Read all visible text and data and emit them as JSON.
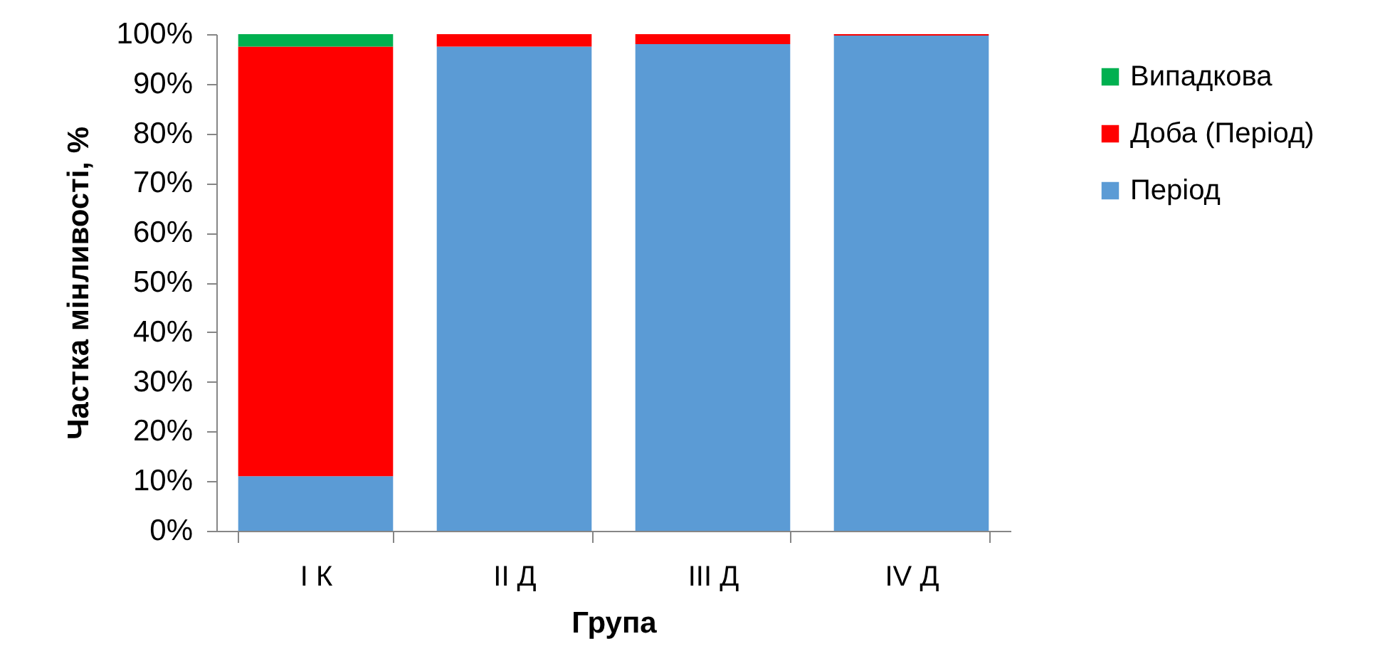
{
  "chart_data": {
    "type": "bar",
    "stacked": true,
    "xlabel": "Група",
    "ylabel": "Частка мінливості, %",
    "categories": [
      "I К",
      "II Д",
      "III Д",
      "IV Д"
    ],
    "series": [
      {
        "name": "Період",
        "color": "#5b9bd5",
        "values": [
          11,
          97.5,
          98,
          99.7
        ]
      },
      {
        "name": "Доба (Період)",
        "color": "#ff0000",
        "values": [
          86.5,
          2.5,
          2,
          0.3
        ]
      },
      {
        "name": "Випадкова",
        "color": "#00b050",
        "values": [
          2.5,
          null,
          null,
          null
        ]
      }
    ],
    "ylim": [
      0,
      100
    ],
    "yticks": [
      {
        "value": 0,
        "label": "0%"
      },
      {
        "value": 10,
        "label": "10%"
      },
      {
        "value": 20,
        "label": "20%"
      },
      {
        "value": 30,
        "label": "30%"
      },
      {
        "value": 40,
        "label": "40%"
      },
      {
        "value": 50,
        "label": "50%"
      },
      {
        "value": 60,
        "label": "60%"
      },
      {
        "value": 70,
        "label": "70%"
      },
      {
        "value": 80,
        "label": "80%"
      },
      {
        "value": 90,
        "label": "90%"
      },
      {
        "value": 100,
        "label": "100%"
      }
    ],
    "grid": false,
    "legend": "right"
  }
}
